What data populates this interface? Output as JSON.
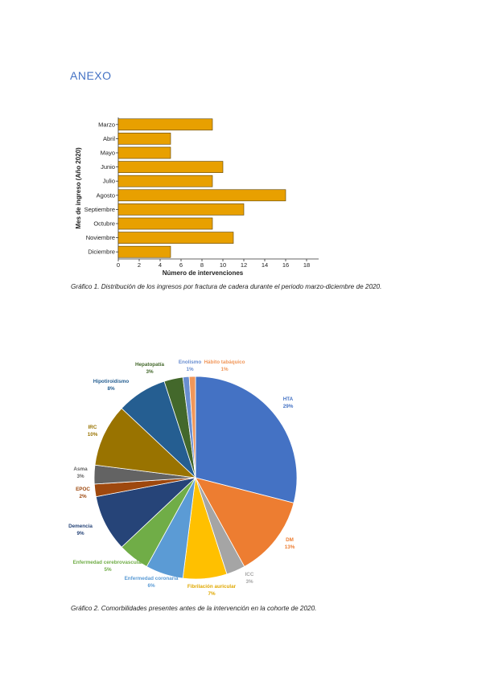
{
  "heading": "ANEXO",
  "chart_data": [
    {
      "type": "bar",
      "orientation": "horizontal",
      "x_label": "Número de intervenciones",
      "y_label": "Mes de ingreso (Año 2020)",
      "categories": [
        "Marzo",
        "Abril",
        "Mayo",
        "Junio",
        "Julio",
        "Agosto",
        "Septiembre",
        "Octubre",
        "Noviembre",
        "Diciembre"
      ],
      "values": [
        9,
        5,
        5,
        10,
        9,
        16,
        12,
        9,
        11,
        5
      ],
      "color": "#e8a000",
      "xlim": [
        0,
        18
      ],
      "xticks": [
        0,
        2,
        4,
        6,
        8,
        10,
        12,
        14,
        16,
        18
      ]
    },
    {
      "type": "pie",
      "categories": [
        "HTA",
        "DM",
        "ICC",
        "Fibrilación auricular",
        "Enfermedad coronaria",
        "Enfermedad cerebrovascular",
        "Demencia",
        "EPOC",
        "Asma",
        "IRC",
        "Hipotiroidismo",
        "Hepatopatía",
        "Enolismo",
        "Hábito tabáquico"
      ],
      "values": [
        29,
        13,
        3,
        7,
        6,
        5,
        9,
        2,
        3,
        10,
        8,
        3,
        1,
        1
      ],
      "value_labels": [
        "29%",
        "13%",
        "3%",
        "7%",
        "6%",
        "5%",
        "9%",
        "2%",
        "3%",
        "10%",
        "8%",
        "3%",
        "1%",
        "1%"
      ],
      "colors": [
        "#4472c4",
        "#ed7d31",
        "#a5a5a5",
        "#ffc000",
        "#5b9bd5",
        "#70ad47",
        "#264478",
        "#9e480e",
        "#636363",
        "#997300",
        "#255e91",
        "#43682b",
        "#698ed0",
        "#f1975a"
      ]
    }
  ],
  "captions": [
    "Gráfico 1. Distribución de los ingresos por fractura de cadera durante el periodo marzo-diciembre de 2020.",
    "Gráfico 2. Comorbilidades presentes antes de la intervención en la cohorte de 2020."
  ]
}
